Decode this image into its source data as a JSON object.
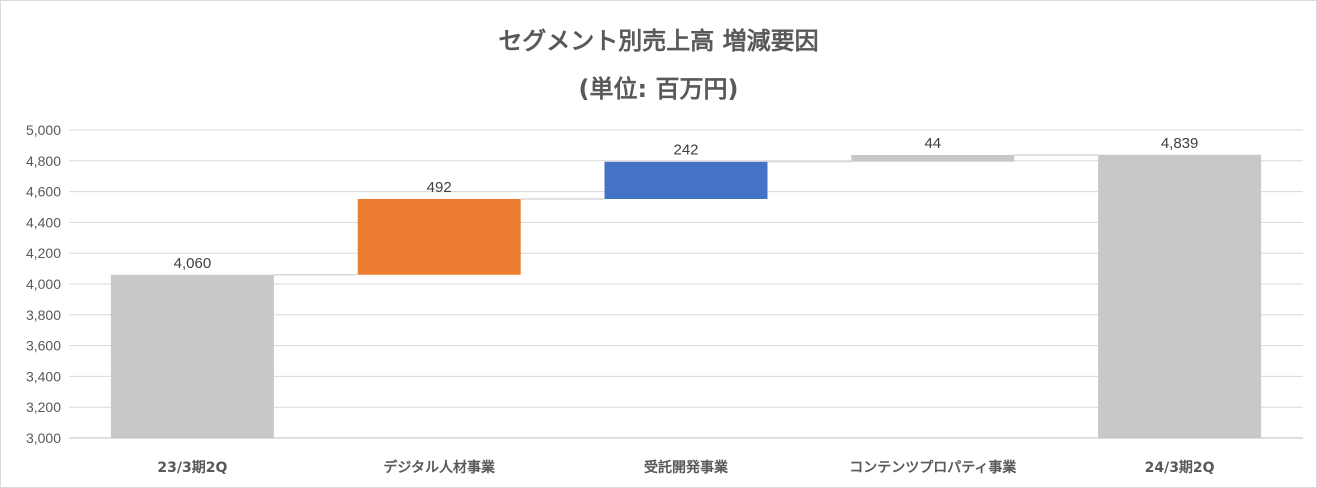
{
  "chart_data": {
    "type": "bar",
    "subtype": "waterfall",
    "title": "セグメント別売上高 増減要因",
    "subtitle": "(単位: 百万円)",
    "categories": [
      "23/3期2Q",
      "デジタル人材事業",
      "受託開発事業",
      "コンテンツプロパティ事業",
      "24/3期2Q"
    ],
    "values": [
      4060,
      492,
      242,
      44,
      4839
    ],
    "data_labels": [
      "4,060",
      "492",
      "242",
      "44",
      "4,839"
    ],
    "bar_kinds": [
      "total",
      "increase",
      "increase",
      "increase",
      "total"
    ],
    "colors": [
      "#c8c8c8",
      "#ed7d31",
      "#4472c4",
      "#c8c8c8",
      "#c8c8c8"
    ],
    "ylim": [
      3000,
      5000
    ],
    "yticks": [
      "3,000",
      "3,200",
      "3,400",
      "3,600",
      "3,800",
      "4,000",
      "4,200",
      "4,400",
      "4,600",
      "4,800",
      "5,000"
    ],
    "grid": true,
    "legend": "none"
  }
}
